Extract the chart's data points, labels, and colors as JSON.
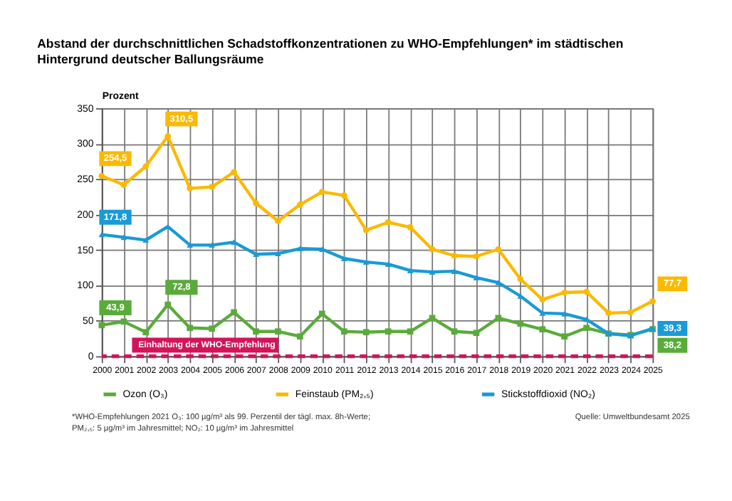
{
  "chart_data": {
    "type": "line",
    "title": "Abstand der durchschnittlichen Schadstoffkonzentrationen zu WHO-Empfehlungen* im städtischen Hintergrund deutscher Ballungsräume",
    "ylabel": "Prozent",
    "x": [
      2000,
      2001,
      2002,
      2003,
      2004,
      2005,
      2006,
      2007,
      2008,
      2009,
      2010,
      2011,
      2012,
      2013,
      2014,
      2015,
      2016,
      2017,
      2018,
      2019,
      2020,
      2021,
      2022,
      2023,
      2024,
      2025
    ],
    "series": [
      {
        "name": "Ozon (O₃)",
        "color": "#5aab3a",
        "marker": "square",
        "values": [
          43.9,
          49,
          34,
          72.8,
          40,
          39,
          62,
          35,
          35,
          28,
          60,
          35,
          34,
          35,
          35,
          54,
          35,
          33,
          54,
          46,
          38,
          28,
          40,
          32,
          30,
          38.2
        ],
        "value_labels": [
          "43,9",
          null,
          null,
          "72,8",
          null,
          null,
          null,
          null,
          null,
          null,
          null,
          null,
          null,
          null,
          null,
          null,
          null,
          null,
          null,
          null,
          null,
          null,
          null,
          null,
          null,
          "38,2"
        ]
      },
      {
        "name": "Feinstaub (PM₂,₅)",
        "color": "#fbb900",
        "marker": "circle",
        "values": [
          254.5,
          242,
          268,
          310.5,
          237,
          239,
          260,
          216,
          191,
          214,
          232,
          227,
          178,
          189,
          182,
          151,
          142,
          141,
          151,
          109,
          80,
          90,
          91,
          61,
          62,
          77.7
        ],
        "value_labels": [
          "254,5",
          null,
          null,
          "310,5",
          null,
          null,
          null,
          null,
          null,
          null,
          null,
          null,
          null,
          null,
          null,
          null,
          null,
          null,
          null,
          null,
          null,
          null,
          null,
          null,
          null,
          "77,7"
        ]
      },
      {
        "name": "Stickstoffdioxid (NO₂)",
        "color": "#1a9ad6",
        "marker": "triangle",
        "values": [
          171.8,
          168,
          164,
          183,
          157,
          157,
          161,
          144,
          145,
          152,
          151,
          138,
          133,
          130,
          121,
          119,
          120,
          111,
          104,
          85,
          61,
          60,
          52,
          32,
          29,
          39.3
        ],
        "value_labels": [
          "171,8",
          null,
          null,
          null,
          null,
          null,
          null,
          null,
          null,
          null,
          null,
          null,
          null,
          null,
          null,
          null,
          null,
          null,
          null,
          null,
          null,
          null,
          null,
          null,
          null,
          "39,3"
        ]
      }
    ],
    "xlim": [
      2000,
      2025
    ],
    "xticks": [
      2000,
      2001,
      2002,
      2003,
      2004,
      2005,
      2006,
      2007,
      2008,
      2009,
      2010,
      2011,
      2012,
      2013,
      2014,
      2015,
      2016,
      2017,
      2018,
      2019,
      2020,
      2021,
      2022,
      2023,
      2024,
      2025
    ],
    "ylim": [
      0,
      350
    ],
    "yticks": [
      0,
      50,
      100,
      150,
      200,
      250,
      300,
      350
    ],
    "grid": true,
    "legend": "bottom",
    "line_style": "solid",
    "ref_lines": [
      {
        "axis": "y",
        "value": 0,
        "label": "Einhaltung der WHO-Empfehlung",
        "color": "#d4145a",
        "line_style": "dashed"
      }
    ],
    "annotations": [
      "*WHO-Empfehlungen 2021 O₃: 100 µg/m³ als 99. Perzentil der tägl. max. 8h-Werte;",
      "PM₂,₅: 5 µg/m³ im Jahresmittel; NO₂: 10 µg/m³ im Jahresmittel",
      "Quelle: Umweltbundesamt 2025"
    ]
  }
}
